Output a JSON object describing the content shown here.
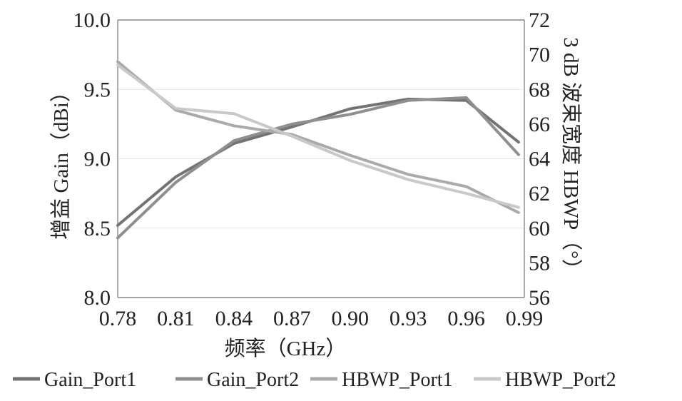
{
  "chart_data": {
    "type": "line",
    "xlabel": "频率（GHz）",
    "ylabel_left": "增益 Gain（dBi）",
    "ylabel_right": "3 dB 波束宽度 HBWP（°）",
    "x_ticks": [
      "0.78",
      "0.81",
      "0.84",
      "0.87",
      "0.90",
      "0.93",
      "0.96",
      "0.99"
    ],
    "y_left_ticks": [
      "8.0",
      "8.5",
      "9.0",
      "9.5",
      "10.0"
    ],
    "y_right_ticks": [
      "56",
      "58",
      "60",
      "62",
      "64",
      "66",
      "68",
      "70",
      "72"
    ],
    "xlim": [
      0.78,
      0.99
    ],
    "ylim_left": [
      8.0,
      10.0
    ],
    "ylim_right": [
      56,
      72
    ],
    "grid": "horizontal",
    "legend_position": "bottom",
    "series": [
      {
        "name": "Gain_Port1",
        "axis": "left",
        "color": "#737373",
        "x": [
          0.78,
          0.81,
          0.84,
          0.87,
          0.9,
          0.93,
          0.96,
          0.987
        ],
        "y": [
          8.52,
          8.87,
          9.11,
          9.23,
          9.36,
          9.43,
          9.42,
          9.12
        ]
      },
      {
        "name": "Gain_Port2",
        "axis": "left",
        "color": "#8f8f8f",
        "x": [
          0.78,
          0.81,
          0.84,
          0.87,
          0.9,
          0.93,
          0.96,
          0.987
        ],
        "y": [
          8.43,
          8.83,
          9.13,
          9.25,
          9.32,
          9.42,
          9.44,
          9.03
        ]
      },
      {
        "name": "HBWP_Port1",
        "axis": "right",
        "color": "#aaaaaa",
        "x": [
          0.78,
          0.81,
          0.84,
          0.87,
          0.9,
          0.93,
          0.96,
          0.987
        ],
        "y": [
          69.6,
          66.8,
          65.9,
          65.4,
          64.2,
          63.1,
          62.4,
          60.9
        ]
      },
      {
        "name": "HBWP_Port2",
        "axis": "right",
        "color": "#c9c9c9",
        "x": [
          0.78,
          0.81,
          0.84,
          0.87,
          0.9,
          0.93,
          0.96,
          0.987
        ],
        "y": [
          69.4,
          66.9,
          66.6,
          65.3,
          63.9,
          62.8,
          62.0,
          61.2
        ]
      }
    ]
  }
}
